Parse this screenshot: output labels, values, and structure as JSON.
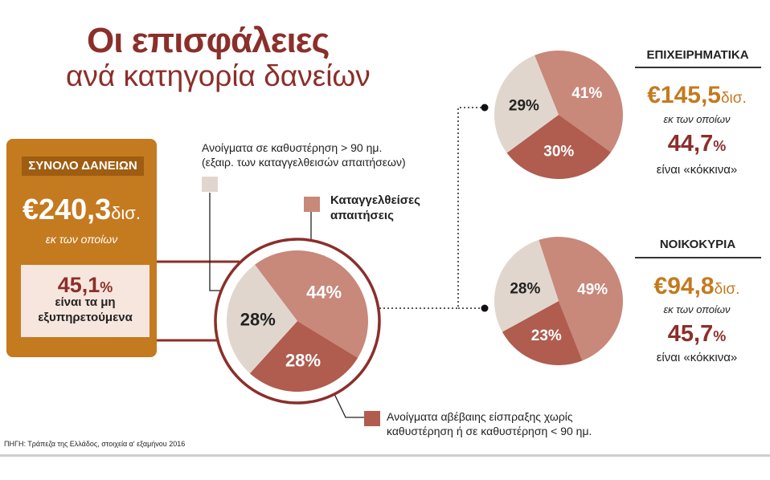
{
  "header": {
    "title": "Οι επισφάλειες",
    "subtitle": "ανά κατηγορία δανείων"
  },
  "totals": {
    "label": "ΣΥΝΟΛΟ ΔΑΝΕΙΩΝ",
    "value": "€240,3",
    "unit": "δισ.",
    "sub": "εκ των οποίων",
    "npl_value": "45,1",
    "npl_pct": "%",
    "npl_text_1": "είναι τα μη",
    "npl_text_2": "εξυπηρετούμενα"
  },
  "legend": {
    "grey_line1": "Ανοίγματα σε καθυστέρηση > 90 ημ.",
    "grey_line2": "(εξαιρ. των καταγγελθεισών απαιτήσεων)",
    "pink_line1": "Καταγγελθείσες",
    "pink_line2": "απαιτήσεις",
    "red_line1": "Ανοίγματα αβέβαιης είσπραξης χωρίς",
    "red_line2": "καθυστέρηση ή σε καθυστέρηση < 90 ημ."
  },
  "business": {
    "title": "ΕΠΙΧΕΙΡΗΜΑΤΙΚΑ",
    "value": "€145,5",
    "unit": "δισ.",
    "sub": "εκ των οποίων",
    "red_value": "44,7",
    "pct": "%",
    "red_text": "είναι «κόκκινα»"
  },
  "households": {
    "title": "ΝΟΙΚΟΚΥΡΙΑ",
    "value": "€94,8",
    "unit": "δισ.",
    "sub": "εκ των οποίων",
    "red_value": "45,7",
    "pct": "%",
    "red_text": "είναι «κόκκινα»"
  },
  "source": "ΠΗΓΗ: Τράπεζα της Ελλάδος, στοιχεία α' εξαμήνου 2016",
  "colors": {
    "grey": "#e1d6cd",
    "pink": "#c8887a",
    "red": "#b05c4e",
    "accent": "#8b2f2a",
    "orange": "#c47a1f"
  },
  "chart_data": [
    {
      "type": "pie",
      "categories": [
        "Καταγγελθείσες απαιτήσεις",
        "Ανοίγματα αβέβαιης είσπραξης χωρίς καθυστέρηση ή σε καθυστέρηση < 90 ημ.",
        "Ανοίγματα σε καθυστέρηση > 90 ημ. (εξαιρ. των καταγγελθεισών απαιτήσεων)"
      ],
      "values": [
        44,
        28,
        28
      ],
      "labels": [
        "44%",
        "28%",
        "28%"
      ]
    },
    {
      "type": "pie",
      "title": "ΕΠΙΧΕΙΡΗΜΑΤΙΚΑ",
      "categories": [
        "Καταγγελθείσες απαιτήσεις",
        "Ανοίγματα αβέβαιης είσπραξης χωρίς καθυστέρηση ή σε καθυστέρηση < 90 ημ.",
        "Ανοίγματα σε καθυστέρηση > 90 ημ. (εξαιρ. των καταγγελθεισών απαιτήσεων)"
      ],
      "values": [
        41,
        30,
        29
      ],
      "labels": [
        "41%",
        "30%",
        "29%"
      ]
    },
    {
      "type": "pie",
      "title": "ΝΟΙΚΟΚΥΡΙΑ",
      "categories": [
        "Καταγγελθείσες απαιτήσεις",
        "Ανοίγματα αβέβαιης είσπραξης χωρίς καθυστέρηση ή σε καθυστέρηση < 90 ημ.",
        "Ανοίγματα σε καθυστέρηση > 90 ημ. (εξαιρ. των καταγγελθεισών απαιτήσεων)"
      ],
      "values": [
        49,
        23,
        28
      ],
      "labels": [
        "49%",
        "23%",
        "28%"
      ]
    }
  ]
}
